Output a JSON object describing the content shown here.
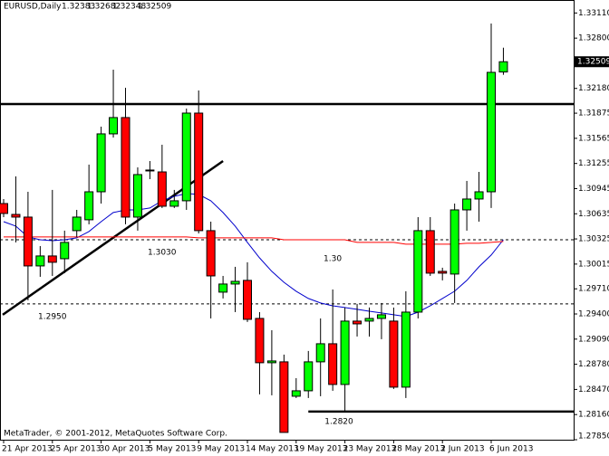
{
  "chart_data": {
    "type": "candlestick",
    "title": "EURUSD,Daily",
    "footer": "MetaTrader, © 2001-2012, MetaQuotes Software Corp.",
    "categories": [
      "21 Apr 2013",
      null,
      null,
      null,
      "25 Apr 2013",
      null,
      null,
      null,
      "30 Apr 2013",
      null,
      null,
      null,
      "5 May 2013",
      null,
      null,
      null,
      "9 May 2013",
      null,
      null,
      null,
      "14 May 2013",
      null,
      null,
      null,
      "19 May 2013",
      null,
      null,
      null,
      "23 May 2013",
      null,
      null,
      null,
      "28 May 2013",
      null,
      null,
      null,
      "2 Jun 2013",
      null,
      null,
      null,
      "6 Jun 2013",
      null
    ],
    "open": [
      1.30761,
      1.30627,
      1.30594,
      1.29992,
      1.30115,
      1.30081,
      1.30427,
      1.30561,
      1.30906,
      1.3162,
      1.31821,
      1.30594,
      1.31174,
      1.31151,
      1.30728,
      1.30795,
      1.31876,
      1.30427,
      1.29669,
      1.29769,
      1.29814,
      1.29345,
      1.28799,
      1.2881,
      1.28386,
      1.28453,
      1.2881,
      1.29033,
      1.28531,
      1.29312,
      1.29312,
      1.29345,
      1.29312,
      1.28498,
      1.29423,
      1.30427,
      1.29925,
      1.29892,
      1.30683,
      1.30817,
      1.30906,
      1.32383
    ],
    "high": [
      1.30817,
      1.31096,
      1.30906,
      1.30237,
      1.30929,
      1.30427,
      1.30683,
      1.31241,
      1.31709,
      1.32411,
      1.32188,
      1.31207,
      1.31285,
      1.31486,
      1.30929,
      1.31932,
      1.32155,
      1.30538,
      1.29869,
      1.29981,
      1.30037,
      1.29423,
      1.292,
      1.28899,
      1.28609,
      1.28944,
      1.29345,
      1.29702,
      1.29479,
      1.29524,
      1.29479,
      1.29535,
      1.29479,
      1.2968,
      1.30594,
      1.30594,
      1.2997,
      1.30761,
      1.3104,
      1.31151,
      1.3298,
      1.32682
    ],
    "low": [
      1.30594,
      1.30282,
      1.29568,
      1.29858,
      1.29869,
      1.29903,
      1.30349,
      1.30505,
      1.30761,
      1.31575,
      1.30505,
      1.30427,
      1.31062,
      1.30706,
      1.30706,
      1.30683,
      1.30393,
      1.29345,
      1.29591,
      1.29423,
      1.29301,
      1.28409,
      1.28397,
      1.2794,
      1.28364,
      1.28364,
      1.28386,
      1.28453,
      1.28197,
      1.29122,
      1.29122,
      1.29089,
      1.28476,
      1.28364,
      1.29345,
      1.29869,
      1.29814,
      1.29535,
      1.30427,
      1.30538,
      1.30706,
      1.32348
    ],
    "close": [
      1.30639,
      1.30594,
      1.29992,
      1.30115,
      1.30037,
      1.30282,
      1.30594,
      1.30906,
      1.3162,
      1.31821,
      1.30594,
      1.31118,
      1.31174,
      1.30728,
      1.30795,
      1.31876,
      1.30427,
      1.29869,
      1.29769,
      1.29802,
      1.29334,
      1.28799,
      1.28821,
      1.2794,
      1.28453,
      1.2881,
      1.29033,
      1.28531,
      1.29312,
      1.29278,
      1.29345,
      1.2939,
      1.28498,
      1.29423,
      1.30427,
      1.29903,
      1.29903,
      1.30683,
      1.30817,
      1.30906,
      1.32378,
      1.32509
    ],
    "up_color": "#00ff00",
    "down_color": "#ff0000",
    "series": [
      {
        "color": "#0000cc",
        "values": [
          1.30538,
          1.30483,
          1.30349,
          1.30315,
          1.30304,
          1.30315,
          1.30338,
          1.30416,
          1.30538,
          1.3065,
          1.30683,
          1.30683,
          1.30706,
          1.30795,
          1.3085,
          1.30884,
          1.30873,
          1.30795,
          1.3065,
          1.30483,
          1.30282,
          1.30092,
          1.29925,
          1.29791,
          1.2968,
          1.29591,
          1.29535,
          1.29501,
          1.29479,
          1.29457,
          1.29434,
          1.29412,
          1.2939,
          1.29368,
          1.29423,
          1.29501,
          1.29591,
          1.2968,
          1.29814,
          1.29981,
          1.30126,
          1.30315
        ]
      },
      {
        "color": "#ff0000",
        "values": [
          1.30349,
          1.30349,
          1.30349,
          1.30349,
          1.30349,
          1.30349,
          1.30349,
          1.30349,
          1.30349,
          1.30349,
          1.30349,
          1.30349,
          1.30349,
          1.30349,
          1.30349,
          1.30349,
          1.30338,
          1.30338,
          1.30338,
          1.30338,
          1.30338,
          1.30338,
          1.30338,
          1.30315,
          1.30315,
          1.30315,
          1.30315,
          1.30315,
          1.30315,
          1.30282,
          1.30282,
          1.30282,
          1.30282,
          1.3026,
          1.3026,
          1.3026,
          1.3026,
          1.3026,
          1.30271,
          1.30271,
          1.30282,
          1.30293
        ]
      }
    ],
    "levels": [
      {
        "value": 1.31988,
        "style": "solid"
      },
      {
        "value": 1.28197,
        "style": "solid",
        "label": "1.2820"
      },
      {
        "value": 1.30315,
        "style": "dashed"
      },
      {
        "value": 1.29524,
        "style": "dashed"
      }
    ],
    "trendline": {
      "values": [
        1.2939,
        1.31285
      ]
    },
    "annotations": [
      {
        "text": "1.2950"
      },
      {
        "text": "1.3030"
      },
      {
        "text": "1.30"
      }
    ],
    "ylim": [
      1.2785,
      1.3327
    ],
    "yticks": [
      {
        "value": 1.3311,
        "label": "1.33110"
      },
      {
        "value": 1.328,
        "label": "1.32800"
      },
      {
        "value": 1.3218,
        "label": "1.32180"
      },
      1.31875,
      1.31565,
      1.31255,
      1.30945,
      1.30635,
      1.30325,
      1.30015,
      {
        "value": 1.2971,
        "label": "1.29710"
      },
      {
        "value": 1.294,
        "label": "1.29400"
      },
      {
        "value": 1.2909,
        "label": "1.29090"
      },
      {
        "value": 1.2878,
        "label": "1.28780"
      },
      {
        "value": 1.2847,
        "label": "1.28470"
      },
      {
        "value": 1.2816,
        "label": "1.28160"
      },
      {
        "value": 1.2785,
        "label": "1.27850"
      }
    ]
  }
}
